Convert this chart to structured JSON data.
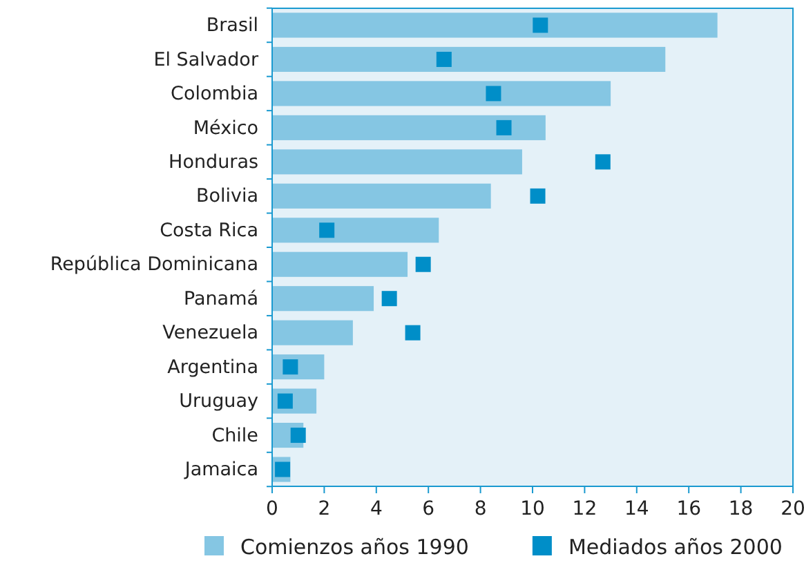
{
  "chart_data": {
    "type": "bar",
    "orientation": "horizontal",
    "categories": [
      "Brasil",
      "El Salvador",
      "Colombia",
      "México",
      "Honduras",
      "Bolivia",
      "Costa Rica",
      "República Dominicana",
      "Panamá",
      "Venezuela",
      "Argentina",
      "Uruguay",
      "Chile",
      "Jamaica"
    ],
    "series": [
      {
        "name": "Comienzos años 1990",
        "color": "#85c6e3",
        "values": [
          17.1,
          15.1,
          13.0,
          10.5,
          9.6,
          8.4,
          6.4,
          5.2,
          3.9,
          3.1,
          2.0,
          1.7,
          1.2,
          0.7
        ]
      },
      {
        "name": "Mediados años 2000",
        "type": "scatter",
        "marker": "square",
        "color": "#008ec8",
        "x": [
          "Brasil",
          "El Salvador",
          "Colombia",
          "México",
          "Honduras",
          "Bolivia",
          "Costa Rica",
          "República Dominicana",
          "Panamá",
          "Venezuela",
          "Argentina",
          "Uruguay",
          "Chile",
          "Jamaica"
        ],
        "values": [
          10.3,
          6.6,
          8.5,
          8.9,
          12.7,
          10.2,
          2.1,
          5.8,
          4.5,
          5.4,
          0.7,
          0.5,
          1.0,
          0.4
        ]
      }
    ],
    "xlim": [
      0,
      20
    ],
    "xticks": [
      0,
      2,
      4,
      6,
      8,
      10,
      12,
      14,
      16,
      18,
      20
    ],
    "grid": false,
    "legend": "bottom"
  }
}
